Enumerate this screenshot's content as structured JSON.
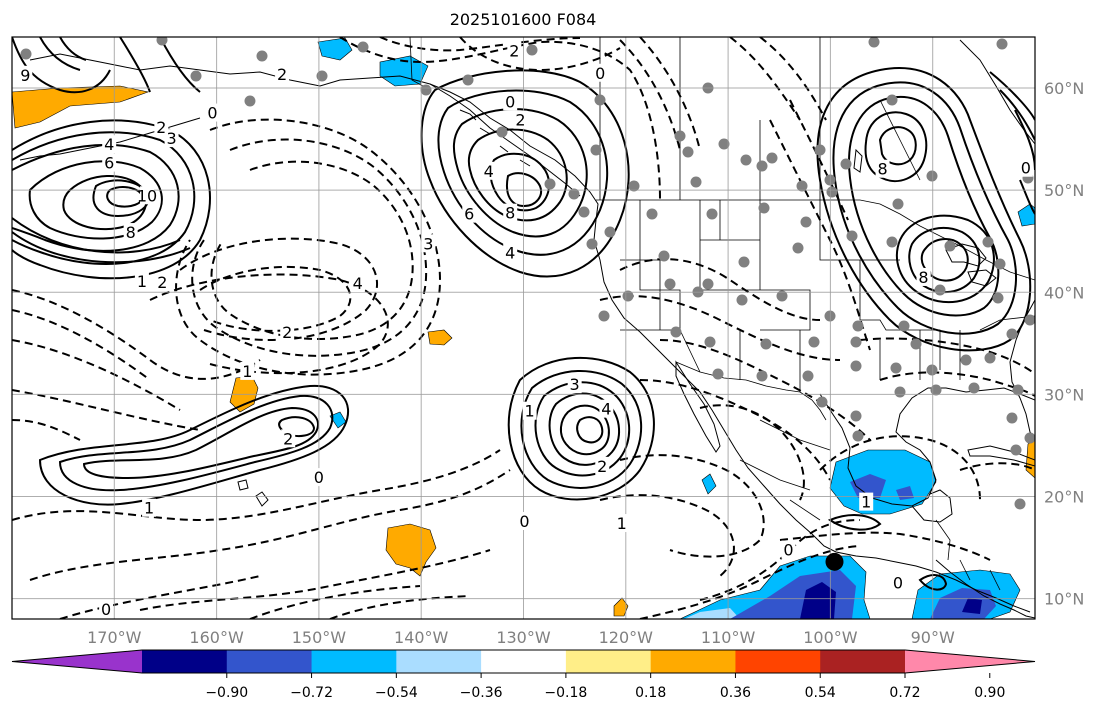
{
  "title": "2025101600 F084",
  "map": {
    "lon_range": [
      -180,
      -80
    ],
    "lat_range": [
      8,
      65
    ],
    "lon_ticks": [
      {
        "lon": -170,
        "label": "170°W"
      },
      {
        "lon": -160,
        "label": "160°W"
      },
      {
        "lon": -150,
        "label": "150°W"
      },
      {
        "lon": -140,
        "label": "140°W"
      },
      {
        "lon": -130,
        "label": "130°W"
      },
      {
        "lon": -120,
        "label": "120°W"
      },
      {
        "lon": -110,
        "label": "110°W"
      },
      {
        "lon": -100,
        "label": "100°W"
      },
      {
        "lon": -90,
        "label": "90°W"
      }
    ],
    "lat_ticks": [
      {
        "lat": 10,
        "label": "10°N"
      },
      {
        "lat": 20,
        "label": "20°N"
      },
      {
        "lat": 30,
        "label": "30°N"
      },
      {
        "lat": 40,
        "label": "40°N"
      },
      {
        "lat": 50,
        "label": "50°N"
      },
      {
        "lat": 60,
        "label": "60°N"
      }
    ],
    "grid": true
  },
  "colorbar": {
    "colors": [
      "#9933cc",
      "#000088",
      "#3355cc",
      "#00bbff",
      "#aaddff",
      "#ffffff",
      "#ffee88",
      "#ffaa00",
      "#ff4400",
      "#aa2222",
      "#ff88aa"
    ],
    "ticks": [
      "−0.90",
      "−0.72",
      "−0.54",
      "−0.36",
      "−0.18",
      "0.18",
      "0.36",
      "0.54",
      "0.72",
      "0.90"
    ],
    "extend": "both"
  },
  "contour_labels": [
    {
      "text": "4",
      "lon": -170.5,
      "lat": 54.4
    },
    {
      "text": "6",
      "lon": -170.5,
      "lat": 52.6
    },
    {
      "text": "2",
      "lon": -165.4,
      "lat": 56.1
    },
    {
      "text": "3",
      "lon": -164.4,
      "lat": 55.0
    },
    {
      "text": "0",
      "lon": -160.4,
      "lat": 57.5
    },
    {
      "text": "10",
      "lon": -166.8,
      "lat": 49.4
    },
    {
      "text": "8",
      "lon": -168.4,
      "lat": 45.8
    },
    {
      "text": "1",
      "lon": -167.3,
      "lat": 41.0
    },
    {
      "text": "2",
      "lon": -165.3,
      "lat": 40.9
    },
    {
      "text": "3",
      "lon": -139.3,
      "lat": 44.7
    },
    {
      "text": "4",
      "lon": -146.2,
      "lat": 40.8
    },
    {
      "text": "2",
      "lon": -153.1,
      "lat": 36.0
    },
    {
      "text": "1",
      "lon": -157.0,
      "lat": 32.2
    },
    {
      "text": "2",
      "lon": -153.6,
      "lat": 61.3
    },
    {
      "text": "2",
      "lon": -130.9,
      "lat": 63.6
    },
    {
      "text": "0",
      "lon": -122.5,
      "lat": 61.4
    },
    {
      "text": "0",
      "lon": -131.3,
      "lat": 58.6
    },
    {
      "text": "2",
      "lon": -130.3,
      "lat": 56.8
    },
    {
      "text": "4",
      "lon": -133.4,
      "lat": 51.8
    },
    {
      "text": "6",
      "lon": -135.3,
      "lat": 47.6
    },
    {
      "text": "8",
      "lon": -131.3,
      "lat": 47.7
    },
    {
      "text": "4",
      "lon": -131.3,
      "lat": 43.8
    },
    {
      "text": "3",
      "lon": -125.0,
      "lat": 30.9
    },
    {
      "text": "4",
      "lon": -121.9,
      "lat": 28.5
    },
    {
      "text": "1",
      "lon": -129.4,
      "lat": 28.3
    },
    {
      "text": "2",
      "lon": -122.3,
      "lat": 22.9
    },
    {
      "text": "2",
      "lon": -153.0,
      "lat": 25.6
    },
    {
      "text": "0",
      "lon": -150.0,
      "lat": 21.8
    },
    {
      "text": "1",
      "lon": -166.6,
      "lat": 18.8
    },
    {
      "text": "0",
      "lon": -129.9,
      "lat": 17.5
    },
    {
      "text": "1",
      "lon": -120.4,
      "lat": 17.3
    },
    {
      "text": "0",
      "lon": -104.1,
      "lat": 14.7
    },
    {
      "text": "0",
      "lon": -170.8,
      "lat": 8.9
    },
    {
      "text": "9",
      "lon": -178.7,
      "lat": 61.2
    },
    {
      "text": "8",
      "lon": -94.9,
      "lat": 52.0
    },
    {
      "text": "8",
      "lon": -90.9,
      "lat": 41.4
    },
    {
      "text": "0",
      "lon": -80.9,
      "lat": 52.1
    },
    {
      "text": "1",
      "lon": -96.5,
      "lat": 19.4
    },
    {
      "text": "0",
      "lon": -93.4,
      "lat": 11.5
    }
  ],
  "marker": {
    "lon": -99.6,
    "lat": 13.6
  }
}
